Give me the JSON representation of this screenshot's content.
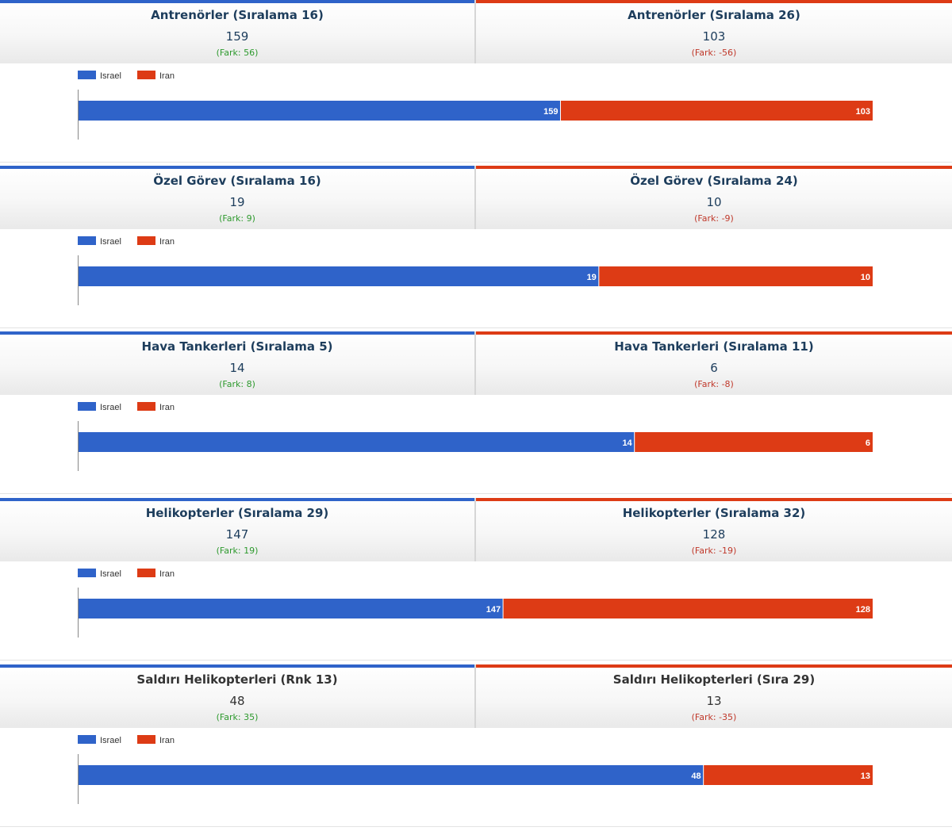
{
  "colors": {
    "israel": "#2f63c9",
    "iran": "#dd3b15"
  },
  "chart_data": [
    {
      "type": "bar",
      "stacked": true,
      "orientation": "horizontal",
      "series": [
        {
          "name": "Israel",
          "values": [
            159
          ]
        },
        {
          "name": "Iran",
          "values": [
            103
          ]
        }
      ],
      "legend": "top-left",
      "header": {
        "left": {
          "title": "Antrenörler (Sıralama 16)",
          "value": "159",
          "diff": "(Fark: 56)"
        },
        "right": {
          "title": "Antrenörler (Sıralama 26)",
          "value": "103",
          "diff": "(Fark: -56)"
        }
      }
    },
    {
      "type": "bar",
      "stacked": true,
      "orientation": "horizontal",
      "series": [
        {
          "name": "Israel",
          "values": [
            19
          ]
        },
        {
          "name": "Iran",
          "values": [
            10
          ]
        }
      ],
      "legend": "top-left",
      "header": {
        "left": {
          "title": "Özel Görev (Sıralama 16)",
          "value": "19",
          "diff": "(Fark: 9)"
        },
        "right": {
          "title": "Özel Görev (Sıralama 24)",
          "value": "10",
          "diff": "(Fark: -9)"
        }
      }
    },
    {
      "type": "bar",
      "stacked": true,
      "orientation": "horizontal",
      "series": [
        {
          "name": "Israel",
          "values": [
            14
          ]
        },
        {
          "name": "Iran",
          "values": [
            6
          ]
        }
      ],
      "legend": "top-left",
      "header": {
        "left": {
          "title": "Hava Tankerleri (Sıralama 5)",
          "value": "14",
          "diff": "(Fark: 8)"
        },
        "right": {
          "title": "Hava Tankerleri (Sıralama 11)",
          "value": "6",
          "diff": "(Fark: -8)"
        }
      }
    },
    {
      "type": "bar",
      "stacked": true,
      "orientation": "horizontal",
      "series": [
        {
          "name": "Israel",
          "values": [
            147
          ]
        },
        {
          "name": "Iran",
          "values": [
            128
          ]
        }
      ],
      "legend": "top-left",
      "header": {
        "left": {
          "title": "Helikopterler (Sıralama 29)",
          "value": "147",
          "diff": "(Fark: 19)"
        },
        "right": {
          "title": "Helikopterler (Sıralama 32)",
          "value": "128",
          "diff": "(Fark: -19)"
        }
      }
    },
    {
      "type": "bar",
      "stacked": true,
      "orientation": "horizontal",
      "series": [
        {
          "name": "Israel",
          "values": [
            48
          ]
        },
        {
          "name": "Iran",
          "values": [
            13
          ]
        }
      ],
      "legend": "top-left",
      "header": {
        "left": {
          "title": "Saldırı Helikopterleri (Rnk 13)",
          "value": "48",
          "diff": "(Fark: 35)"
        },
        "right": {
          "title": "Saldırı Helikopterleri (Sıra 29)",
          "value": "13",
          "diff": "(Fark: -35)"
        }
      }
    }
  ]
}
